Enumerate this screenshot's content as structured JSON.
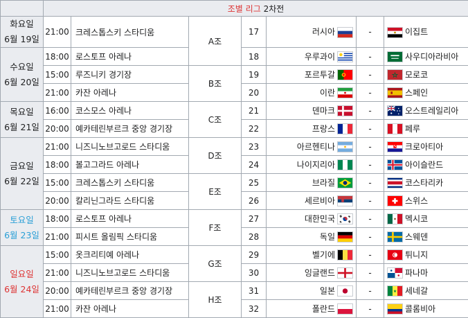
{
  "header": {
    "title_red": "조별 리그",
    "title_black": " 2차전"
  },
  "days": [
    {
      "line1": "화요일",
      "line2": "6월 19일",
      "style": "weekday"
    },
    {
      "line1": "수요일",
      "line2": "6월 20일",
      "style": "weekday"
    },
    {
      "line1": "목요일",
      "line2": "6월 21일",
      "style": "weekday"
    },
    {
      "line1": "금요일",
      "line2": "6월 22일",
      "style": "weekday"
    },
    {
      "line1": "토요일",
      "line2": "6월 23일",
      "style": "sat"
    },
    {
      "line1": "일요일",
      "line2": "6월 24일",
      "style": "sun"
    }
  ],
  "groups": [
    "A조",
    "B조",
    "C조",
    "D조",
    "E조",
    "F조",
    "G조",
    "H조"
  ],
  "matches": [
    {
      "time": "21:00",
      "venue": "크레스톱스키 스타디움",
      "no": "17",
      "home": "러시아",
      "home_flag": "russia",
      "dash": "-",
      "away": "이집트",
      "away_flag": "egypt"
    },
    {
      "time": "18:00",
      "venue": "로스토프 아레나",
      "no": "18",
      "home": "우루과이",
      "home_flag": "uruguay",
      "dash": "-",
      "away": "사우디아라비아",
      "away_flag": "saudi"
    },
    {
      "time": "15:00",
      "venue": "루즈니키 경기장",
      "no": "19",
      "home": "포르투갈",
      "home_flag": "portugal",
      "dash": "-",
      "away": "모로코",
      "away_flag": "morocco"
    },
    {
      "time": "21:00",
      "venue": "카잔 아레나",
      "no": "20",
      "home": "이란",
      "home_flag": "iran",
      "dash": "-",
      "away": "스페인",
      "away_flag": "spain"
    },
    {
      "time": "16:00",
      "venue": "코스모스 아레나",
      "no": "21",
      "home": "덴마크",
      "home_flag": "denmark",
      "dash": "-",
      "away": "오스트레일리아",
      "away_flag": "australia"
    },
    {
      "time": "20:00",
      "venue": "예카테린부르크 중앙 경기장",
      "no": "22",
      "home": "프랑스",
      "home_flag": "france",
      "dash": "-",
      "away": "페루",
      "away_flag": "peru"
    },
    {
      "time": "21:00",
      "venue": "니즈니노브고로드 스타디움",
      "no": "23",
      "home": "아르헨티나",
      "home_flag": "argentina",
      "dash": "-",
      "away": "크로아티아",
      "away_flag": "croatia"
    },
    {
      "time": "18:00",
      "venue": "볼고그라드 아레나",
      "no": "24",
      "home": "나이지리아",
      "home_flag": "nigeria",
      "dash": "-",
      "away": "아이슬란드",
      "away_flag": "iceland"
    },
    {
      "time": "15:00",
      "venue": "크레스톱스키 스타디움",
      "no": "25",
      "home": "브라질",
      "home_flag": "brazil",
      "dash": "-",
      "away": "코스타리카",
      "away_flag": "costarica"
    },
    {
      "time": "20:00",
      "venue": "칼리닌그라드 스타디움",
      "no": "26",
      "home": "세르비아",
      "home_flag": "serbia",
      "dash": "-",
      "away": "스위스",
      "away_flag": "switzerland"
    },
    {
      "time": "18:00",
      "venue": "로스토프 아레나",
      "no": "27",
      "home": "대한민국",
      "home_flag": "korea",
      "dash": "-",
      "away": "멕시코",
      "away_flag": "mexico"
    },
    {
      "time": "21:00",
      "venue": "피시트 올림픽 스타디움",
      "no": "28",
      "home": "독일",
      "home_flag": "germany",
      "dash": "-",
      "away": "스웨덴",
      "away_flag": "sweden"
    },
    {
      "time": "15:00",
      "venue": "옷크리티예 아레나",
      "no": "29",
      "home": "벨기에",
      "home_flag": "belgium",
      "dash": "-",
      "away": "튀니지",
      "away_flag": "tunisia"
    },
    {
      "time": "21:00",
      "venue": "니즈니노브고로드 스타디움",
      "no": "30",
      "home": "잉글랜드",
      "home_flag": "england",
      "dash": "-",
      "away": "파나마",
      "away_flag": "panama"
    },
    {
      "time": "20:00",
      "venue": "예카테린부르크 중앙 경기장",
      "no": "31",
      "home": "일본",
      "home_flag": "japan",
      "dash": "-",
      "away": "세네갈",
      "away_flag": "senegal"
    },
    {
      "time": "21:00",
      "venue": "카잔 아레나",
      "no": "32",
      "home": "폴란드",
      "home_flag": "poland",
      "dash": "-",
      "away": "콜롬비아",
      "away_flag": "colombia"
    }
  ]
}
